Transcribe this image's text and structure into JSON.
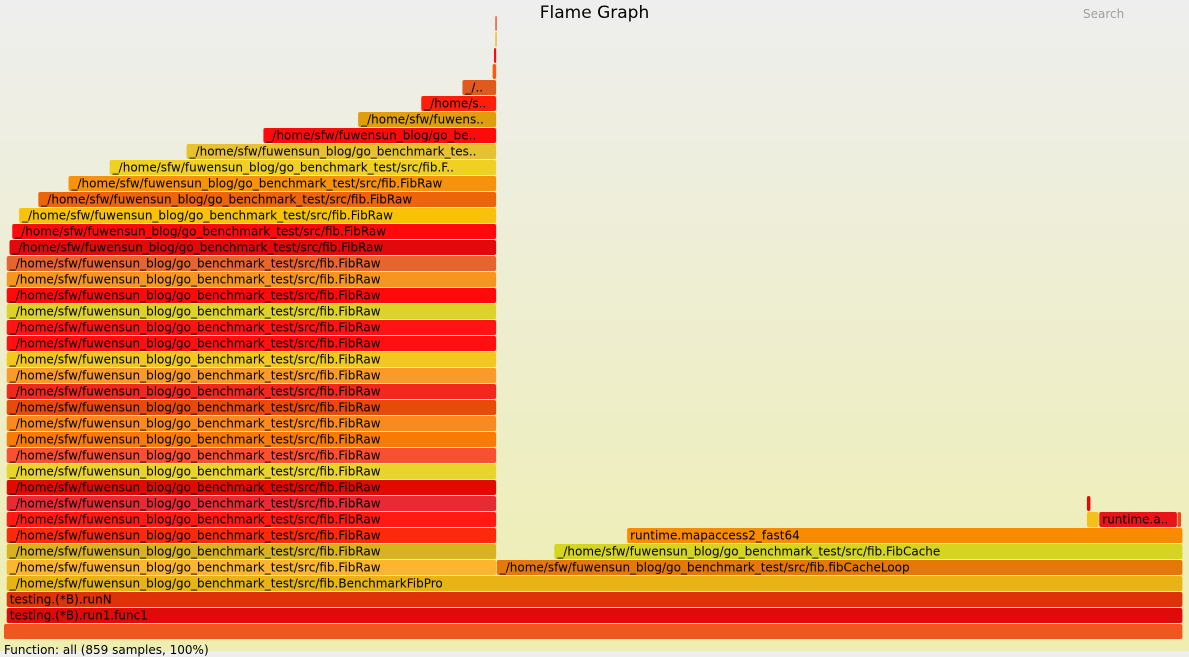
{
  "header": {
    "title": "Flame Graph",
    "search_label": "Search"
  },
  "footer": {
    "details": "Function: all (859 samples, 100%)"
  },
  "chart_data": {
    "type": "flame",
    "title": "Flame Graph",
    "unit": "samples",
    "total_samples": 859,
    "frames": [
      {
        "label": "",
        "level": 0,
        "start": 0,
        "width": 859,
        "color": "#f0561e"
      },
      {
        "label": "testing.(*B).run1.func1",
        "level": 1,
        "start": 2,
        "width": 857,
        "color": "#e00a0a"
      },
      {
        "label": "testing.(*B).runN",
        "level": 2,
        "start": 2,
        "width": 857,
        "color": "#e03208"
      },
      {
        "label": "_/home/sfw/fuwensun_blog/go_benchmark_test/src/fib.BenchmarkFibPro",
        "level": 3,
        "start": 2,
        "width": 857,
        "color": "#e8b414"
      },
      {
        "label": "_/home/sfw/fuwensun_blog/go_benchmark_test/src/fib.FibRaw",
        "level": 4,
        "start": 2,
        "width": 357,
        "color": "#fbb52e"
      },
      {
        "label": "_/home/sfw/fuwensun_blog/go_benchmark_test/src/fib.fibCacheLoop",
        "level": 4,
        "start": 359,
        "width": 500,
        "color": "#e6780a"
      },
      {
        "label": "_/home/sfw/fuwensun_blog/go_benchmark_test/src/fib.FibRaw",
        "level": 5,
        "start": 2,
        "width": 357,
        "color": "#d8b31f"
      },
      {
        "label": "_/home/sfw/fuwensun_blog/go_benchmark_test/src/fib.FibCache",
        "level": 5,
        "start": 401,
        "width": 458,
        "color": "#d5d520"
      },
      {
        "label": "_/home/sfw/fuwensun_blog/go_benchmark_test/src/fib.FibRaw",
        "level": 6,
        "start": 2,
        "width": 357,
        "color": "#fa2a0a"
      },
      {
        "label": "runtime.mapaccess2_fast64",
        "level": 6,
        "start": 454,
        "width": 405,
        "color": "#fa8a00"
      },
      {
        "label": "_/home/sfw/fuwensun_blog/go_benchmark_test/src/fib.FibRaw",
        "level": 7,
        "start": 2,
        "width": 357,
        "color": "#ff1a14"
      },
      {
        "label": "",
        "level": 7,
        "start": 789,
        "width": 9,
        "color": "#f5c01a"
      },
      {
        "label": "runtime.a..",
        "level": 7,
        "start": 798,
        "width": 57,
        "color": "#e8141a"
      },
      {
        "label": "",
        "level": 7,
        "start": 855,
        "width": 3,
        "color": "#f0481e"
      },
      {
        "label": "_/home/sfw/fuwensun_blog/go_benchmark_test/src/fib.FibRaw",
        "level": 8,
        "start": 2,
        "width": 357,
        "color": "#e82a35"
      },
      {
        "label": "",
        "level": 8,
        "start": 789,
        "width": 3,
        "color": "#e00a0a"
      },
      {
        "label": "_/home/sfw/fuwensun_blog/go_benchmark_test/src/fib.FibRaw",
        "level": 9,
        "start": 2,
        "width": 357,
        "color": "#e00a00"
      },
      {
        "label": "_/home/sfw/fuwensun_blog/go_benchmark_test/src/fib.FibRaw",
        "level": 10,
        "start": 2,
        "width": 357,
        "color": "#e8d42a"
      },
      {
        "label": "_/home/sfw/fuwensun_blog/go_benchmark_test/src/fib.FibRaw",
        "level": 11,
        "start": 2,
        "width": 357,
        "color": "#fa5032"
      },
      {
        "label": "_/home/sfw/fuwensun_blog/go_benchmark_test/src/fib.FibRaw",
        "level": 12,
        "start": 2,
        "width": 357,
        "color": "#fa7a06"
      },
      {
        "label": "_/home/sfw/fuwensun_blog/go_benchmark_test/src/fib.FibRaw",
        "level": 13,
        "start": 2,
        "width": 357,
        "color": "#fa8a1e"
      },
      {
        "label": "_/home/sfw/fuwensun_blog/go_benchmark_test/src/fib.FibRaw",
        "level": 14,
        "start": 2,
        "width": 357,
        "color": "#e84a0a"
      },
      {
        "label": "_/home/sfw/fuwensun_blog/go_benchmark_test/src/fib.FibRaw",
        "level": 15,
        "start": 2,
        "width": 357,
        "color": "#f0281e"
      },
      {
        "label": "_/home/sfw/fuwensun_blog/go_benchmark_test/src/fib.FibRaw",
        "level": 16,
        "start": 2,
        "width": 357,
        "color": "#fa9a28"
      },
      {
        "label": "_/home/sfw/fuwensun_blog/go_benchmark_test/src/fib.FibRaw",
        "level": 17,
        "start": 2,
        "width": 357,
        "color": "#f2c71e"
      },
      {
        "label": "_/home/sfw/fuwensun_blog/go_benchmark_test/src/fib.FibRaw",
        "level": 18,
        "start": 2,
        "width": 357,
        "color": "#ff0f0f"
      },
      {
        "label": "_/home/sfw/fuwensun_blog/go_benchmark_test/src/fib.FibRaw",
        "level": 19,
        "start": 2,
        "width": 357,
        "color": "#ff1414"
      },
      {
        "label": "_/home/sfw/fuwensun_blog/go_benchmark_test/src/fib.FibRaw",
        "level": 20,
        "start": 2,
        "width": 357,
        "color": "#dcd228"
      },
      {
        "label": "_/home/sfw/fuwensun_blog/go_benchmark_test/src/fib.FibRaw",
        "level": 21,
        "start": 2,
        "width": 357,
        "color": "#ff0a0a"
      },
      {
        "label": "_/home/sfw/fuwensun_blog/go_benchmark_test/src/fib.FibRaw",
        "level": 22,
        "start": 2,
        "width": 357,
        "color": "#f6961e"
      },
      {
        "label": "_/home/sfw/fuwensun_blog/go_benchmark_test/src/fib.FibRaw",
        "level": 23,
        "start": 2,
        "width": 357,
        "color": "#e6642e"
      },
      {
        "label": "_/home/sfw/fuwensun_blog/go_benchmark_test/src/fib.FibRaw",
        "level": 24,
        "start": 4,
        "width": 355,
        "color": "#e00a0a"
      },
      {
        "label": "_/home/sfw/fuwensun_blog/go_benchmark_test/src/fib.FibRaw",
        "level": 25,
        "start": 6,
        "width": 353,
        "color": "#ff0a0a"
      },
      {
        "label": "_/home/sfw/fuwensun_blog/go_benchmark_test/src/fib.FibRaw",
        "level": 26,
        "start": 11,
        "width": 348,
        "color": "#f8c20a"
      },
      {
        "label": "_/home/sfw/fuwensun_blog/go_benchmark_test/src/fib.FibRaw",
        "level": 27,
        "start": 25,
        "width": 334,
        "color": "#ee640a"
      },
      {
        "label": "_/home/sfw/fuwensun_blog/go_benchmark_test/src/fib.FibRaw",
        "level": 28,
        "start": 47,
        "width": 312,
        "color": "#f8920a"
      },
      {
        "label": "_/home/sfw/fuwensun_blog/go_benchmark_test/src/fib.F..",
        "level": 29,
        "start": 77,
        "width": 282,
        "color": "#f0d020"
      },
      {
        "label": "_/home/sfw/fuwensun_blog/go_benchmark_tes..",
        "level": 30,
        "start": 133,
        "width": 226,
        "color": "#e8c22e"
      },
      {
        "label": "_/home/sfw/fuwensun_blog/go_be..",
        "level": 31,
        "start": 189,
        "width": 170,
        "color": "#ff0a0a"
      },
      {
        "label": "_/home/sfw/fuwens..",
        "level": 32,
        "start": 258,
        "width": 101,
        "color": "#e09e0a"
      },
      {
        "label": "_/home/s..",
        "level": 33,
        "start": 304,
        "width": 55,
        "color": "#ff1e0a"
      },
      {
        "label": "_/..",
        "level": 34,
        "start": 334,
        "width": 25,
        "color": "#e05a1e"
      },
      {
        "label": "",
        "level": 35,
        "start": 356,
        "width": 3,
        "color": "#fa5a0a"
      },
      {
        "label": "",
        "level": 36,
        "start": 357,
        "width": 2,
        "color": "#ff0a0a"
      },
      {
        "label": "",
        "level": 37,
        "start": 358,
        "width": 1,
        "color": "#f0b41e"
      },
      {
        "label": "",
        "level": 38,
        "start": 358,
        "width": 1,
        "color": "#f0461e"
      }
    ]
  }
}
